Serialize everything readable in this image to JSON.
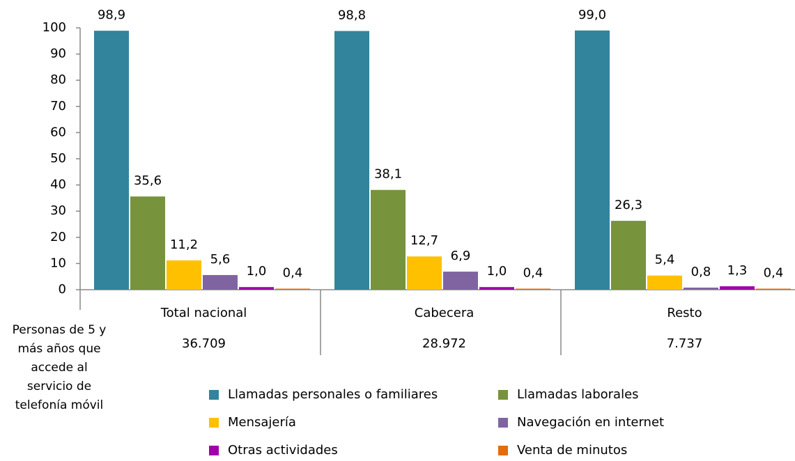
{
  "chart_data": {
    "type": "bar",
    "categories": [
      "Total nacional",
      "Cabecera",
      "Resto"
    ],
    "series": [
      {
        "name": "Llamadas personales o familiares",
        "color": "#31849b",
        "values": [
          98.9,
          98.8,
          99.0
        ],
        "value_labels": [
          "98,9",
          "98,8",
          "99,0"
        ]
      },
      {
        "name": "Llamadas laborales",
        "color": "#77933c",
        "values": [
          35.6,
          38.1,
          26.3
        ],
        "value_labels": [
          "35,6",
          "38,1",
          "26,3"
        ]
      },
      {
        "name": "Mensajería",
        "color": "#ffc000",
        "values": [
          11.2,
          12.7,
          5.4
        ],
        "value_labels": [
          "11,2",
          "12,7",
          "5,4"
        ]
      },
      {
        "name": "Navegación en internet",
        "color": "#8064a2",
        "values": [
          5.6,
          6.9,
          0.8
        ],
        "value_labels": [
          "5,6",
          "6,9",
          "0,8"
        ]
      },
      {
        "name": "Otras actividades",
        "color": "#a000a8",
        "values": [
          1.0,
          1.0,
          1.3
        ],
        "value_labels": [
          "1,0",
          "1,0",
          "1,3"
        ]
      },
      {
        "name": "Venta de minutos",
        "color": "#e46c0a",
        "values": [
          0.4,
          0.4,
          0.4
        ],
        "value_labels": [
          "0,4",
          "0,4",
          "0,4"
        ]
      }
    ],
    "ylim": [
      0,
      100
    ],
    "yticks": [
      0,
      10,
      20,
      30,
      40,
      50,
      60,
      70,
      80,
      90,
      100
    ],
    "row_label": [
      "Personas de 5 y",
      "más años que",
      "accede al",
      "servicio de",
      "telefonía móvil"
    ],
    "row_values": [
      "36.709",
      "28.972",
      "7.737"
    ]
  }
}
